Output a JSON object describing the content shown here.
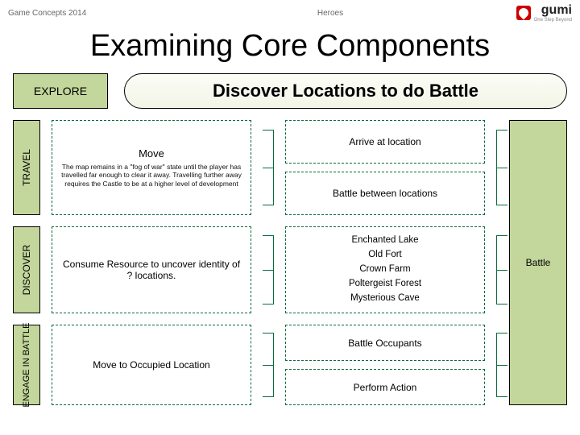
{
  "header": {
    "left": "Game Concepts 2014",
    "center": "Heroes",
    "logo_text": "gumi",
    "logo_sub": "One Step Beyond"
  },
  "title": "Examining Core Components",
  "top": {
    "explore": "EXPLORE",
    "discover": "Discover Locations to do Battle"
  },
  "rows": {
    "travel": {
      "label": "TRAVEL",
      "c1_title": "Move",
      "c1_sub": "The map remains in a \"fog of war\" state until the player has travelled far enough to clear it away. Travelling further away requires the Castle to be at a higher level of development",
      "c2_top": "Arrive at location",
      "c2_bottom": "Battle between locations"
    },
    "discover": {
      "label": "DISCOVER",
      "c1": "Consume Resource to uncover identity of ? locations.",
      "c2_items": [
        "Enchanted Lake",
        "Old Fort",
        "Crown Farm",
        "Poltergeist Forest",
        "Mysterious Cave"
      ]
    },
    "engage": {
      "label": "ENGAGE IN BATTLE",
      "c1": "Move to Occupied Location",
      "c2_top": "Battle Occupants",
      "c2_bottom": "Perform Action"
    }
  },
  "battle_label": "Battle",
  "colors": {
    "green_fill": "#c3d69b",
    "dash_border": "#0a6b3a",
    "solid_border": "#000000"
  }
}
